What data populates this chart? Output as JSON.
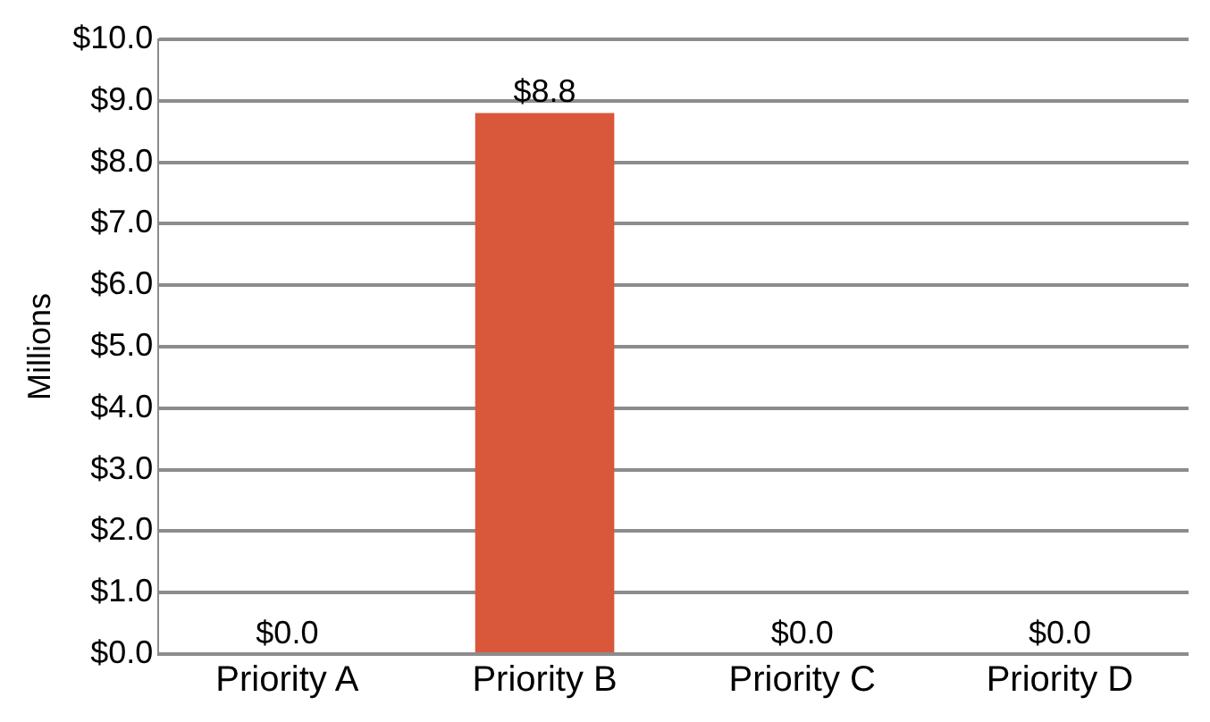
{
  "chart_data": {
    "type": "bar",
    "ylabel": "Millions",
    "categories": [
      "Priority A",
      "Priority B",
      "Priority C",
      "Priority D"
    ],
    "values": [
      0,
      8.8,
      0,
      0
    ],
    "color": "#d9573a",
    "value_labels": [
      "$0.0",
      "$8.8",
      "$0.0",
      "$0.0"
    ],
    "ylim": [
      0,
      10
    ],
    "yticks": [
      {
        "value": 0,
        "label": "$0.0"
      },
      {
        "value": 1,
        "label": "$1.0"
      },
      {
        "value": 2,
        "label": "$2.0"
      },
      {
        "value": 3,
        "label": "$3.0"
      },
      {
        "value": 4,
        "label": "$4.0"
      },
      {
        "value": 5,
        "label": "$5.0"
      },
      {
        "value": 6,
        "label": "$6.0"
      },
      {
        "value": 7,
        "label": "$7.0"
      },
      {
        "value": 8,
        "label": "$8.0"
      },
      {
        "value": 9,
        "label": "$9.0"
      },
      {
        "value": 10,
        "label": "$10.0"
      }
    ],
    "grid": "y",
    "legend": false
  }
}
